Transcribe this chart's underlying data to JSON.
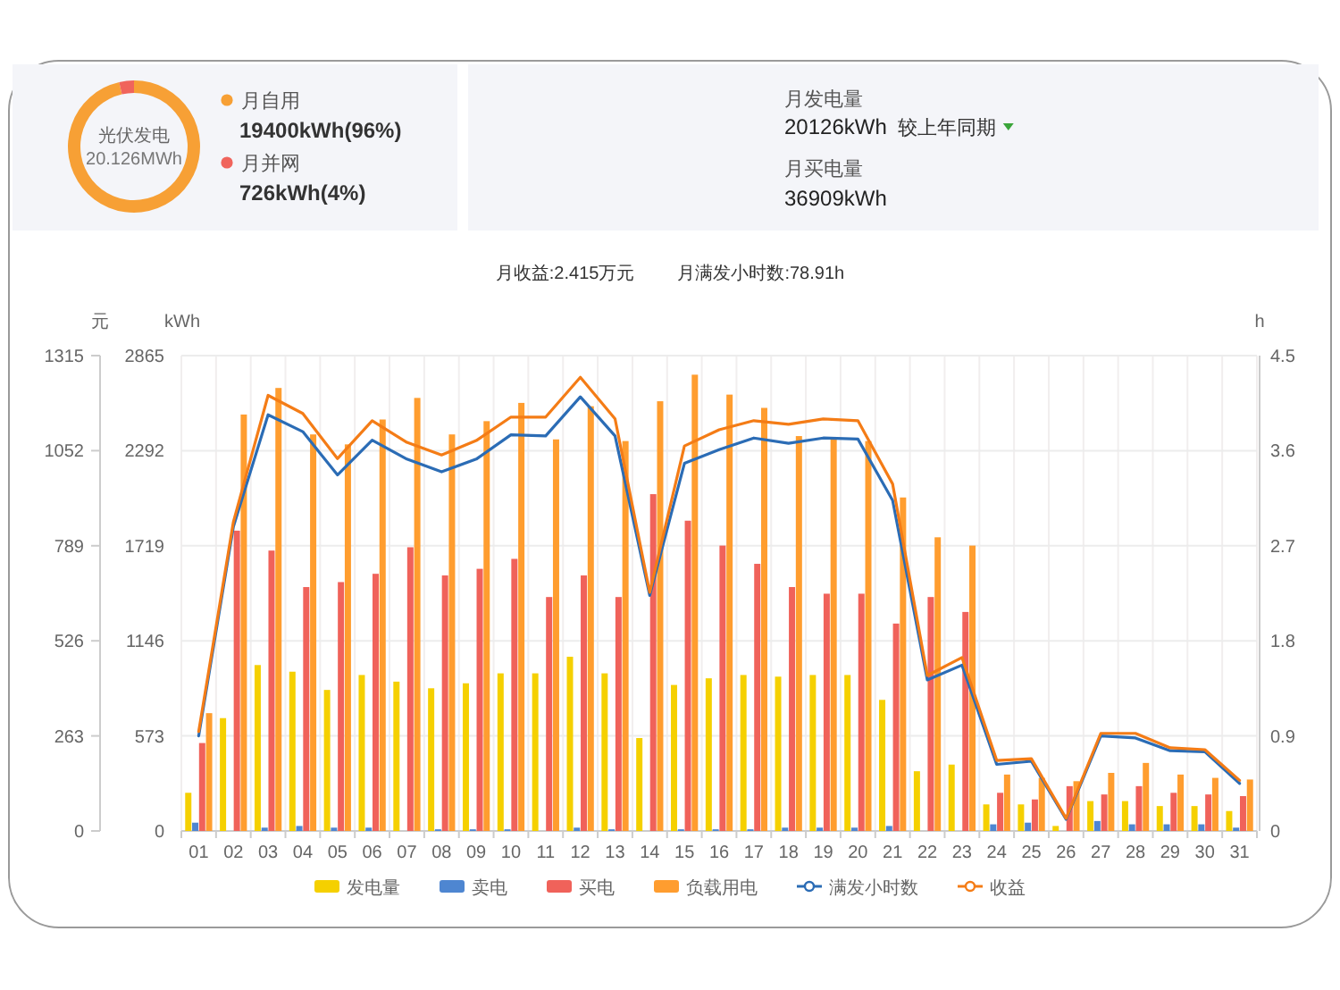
{
  "chart_data": [
    {
      "type": "donut",
      "title": "光伏发电",
      "subtitle": "20.126MWh",
      "categories": [
        "月自用",
        "月并网"
      ],
      "values": [
        19400,
        726
      ],
      "colors": [
        "#f7a035",
        "#f0645c"
      ],
      "value_labels": [
        "19400kWh(96%)",
        "726kWh(4%)"
      ],
      "legend": "right"
    },
    {
      "type": "other",
      "annotations": [
        "月发电量",
        "20126kWh",
        "较上年同期",
        "月买电量",
        "36909kWh"
      ]
    },
    {
      "type": "bar",
      "title": "月收益:2.415万元",
      "subtitle": "月满发小时数:78.91h",
      "ylabel": "kWh",
      "y2label": "h",
      "y3label": "元",
      "categories": [
        "01",
        "02",
        "03",
        "04",
        "05",
        "06",
        "07",
        "08",
        "09",
        "10",
        "11",
        "12",
        "13",
        "14",
        "15",
        "16",
        "17",
        "18",
        "19",
        "20",
        "21",
        "22",
        "23",
        "24",
        "25",
        "26",
        "27",
        "28",
        "29",
        "30",
        "31"
      ],
      "ylim": [
        0,
        2865
      ],
      "yticks": [
        0,
        573,
        1146,
        1719,
        2292,
        2865
      ],
      "y2lim": [
        0,
        4.5
      ],
      "y2ticks": [
        0,
        0.9,
        1.8,
        2.7,
        3.6,
        4.5
      ],
      "y3lim": [
        0,
        1315
      ],
      "y3ticks": [
        0,
        263,
        526,
        789,
        1052,
        1315
      ],
      "grid": true,
      "legend": "bottom",
      "series": [
        {
          "name": "发电量",
          "color": "#f5d000",
          "values": [
            230,
            680,
            1000,
            960,
            850,
            940,
            900,
            860,
            890,
            950,
            950,
            1050,
            950,
            560,
            880,
            920,
            940,
            930,
            940,
            940,
            790,
            360,
            400,
            160,
            160,
            30,
            180,
            180,
            150,
            150,
            120
          ]
        },
        {
          "name": "卖电",
          "color": "#4e86d1",
          "values": [
            50,
            0,
            20,
            30,
            20,
            20,
            0,
            10,
            10,
            10,
            0,
            20,
            10,
            0,
            10,
            10,
            10,
            20,
            20,
            20,
            30,
            0,
            0,
            40,
            50,
            0,
            60,
            40,
            40,
            40,
            20
          ]
        },
        {
          "name": "买电",
          "color": "#f0625a",
          "values": [
            530,
            1810,
            1690,
            1470,
            1500,
            1550,
            1710,
            1540,
            1580,
            1640,
            1410,
            1540,
            1410,
            2030,
            1870,
            1720,
            1610,
            1470,
            1430,
            1430,
            1250,
            1410,
            1320,
            230,
            190,
            270,
            220,
            270,
            230,
            220,
            210
          ]
        },
        {
          "name": "负载用电",
          "color": "#ff9d2f",
          "values": [
            710,
            2510,
            2670,
            2390,
            2330,
            2480,
            2610,
            2390,
            2470,
            2580,
            2360,
            2560,
            2350,
            2590,
            2750,
            2630,
            2550,
            2380,
            2360,
            2350,
            2010,
            1770,
            1720,
            340,
            320,
            300,
            350,
            410,
            340,
            320,
            310
          ]
        },
        {
          "name": "满发小时数",
          "type": "line",
          "axis": "y2",
          "color": "#2b6cb5",
          "values": [
            0.9,
            2.88,
            3.94,
            3.78,
            3.37,
            3.7,
            3.52,
            3.4,
            3.52,
            3.75,
            3.74,
            4.11,
            3.74,
            2.23,
            3.48,
            3.61,
            3.72,
            3.67,
            3.72,
            3.71,
            3.13,
            1.43,
            1.57,
            0.63,
            0.66,
            0.11,
            0.9,
            0.88,
            0.76,
            0.75,
            0.45
          ]
        },
        {
          "name": "收益",
          "type": "line",
          "axis": "y3",
          "color": "#f47c16",
          "values": [
            275,
            855,
            1205,
            1155,
            1030,
            1135,
            1075,
            1040,
            1080,
            1145,
            1145,
            1255,
            1140,
            660,
            1065,
            1110,
            1135,
            1125,
            1140,
            1135,
            960,
            430,
            480,
            195,
            200,
            35,
            270,
            270,
            230,
            225,
            140
          ]
        }
      ]
    }
  ]
}
